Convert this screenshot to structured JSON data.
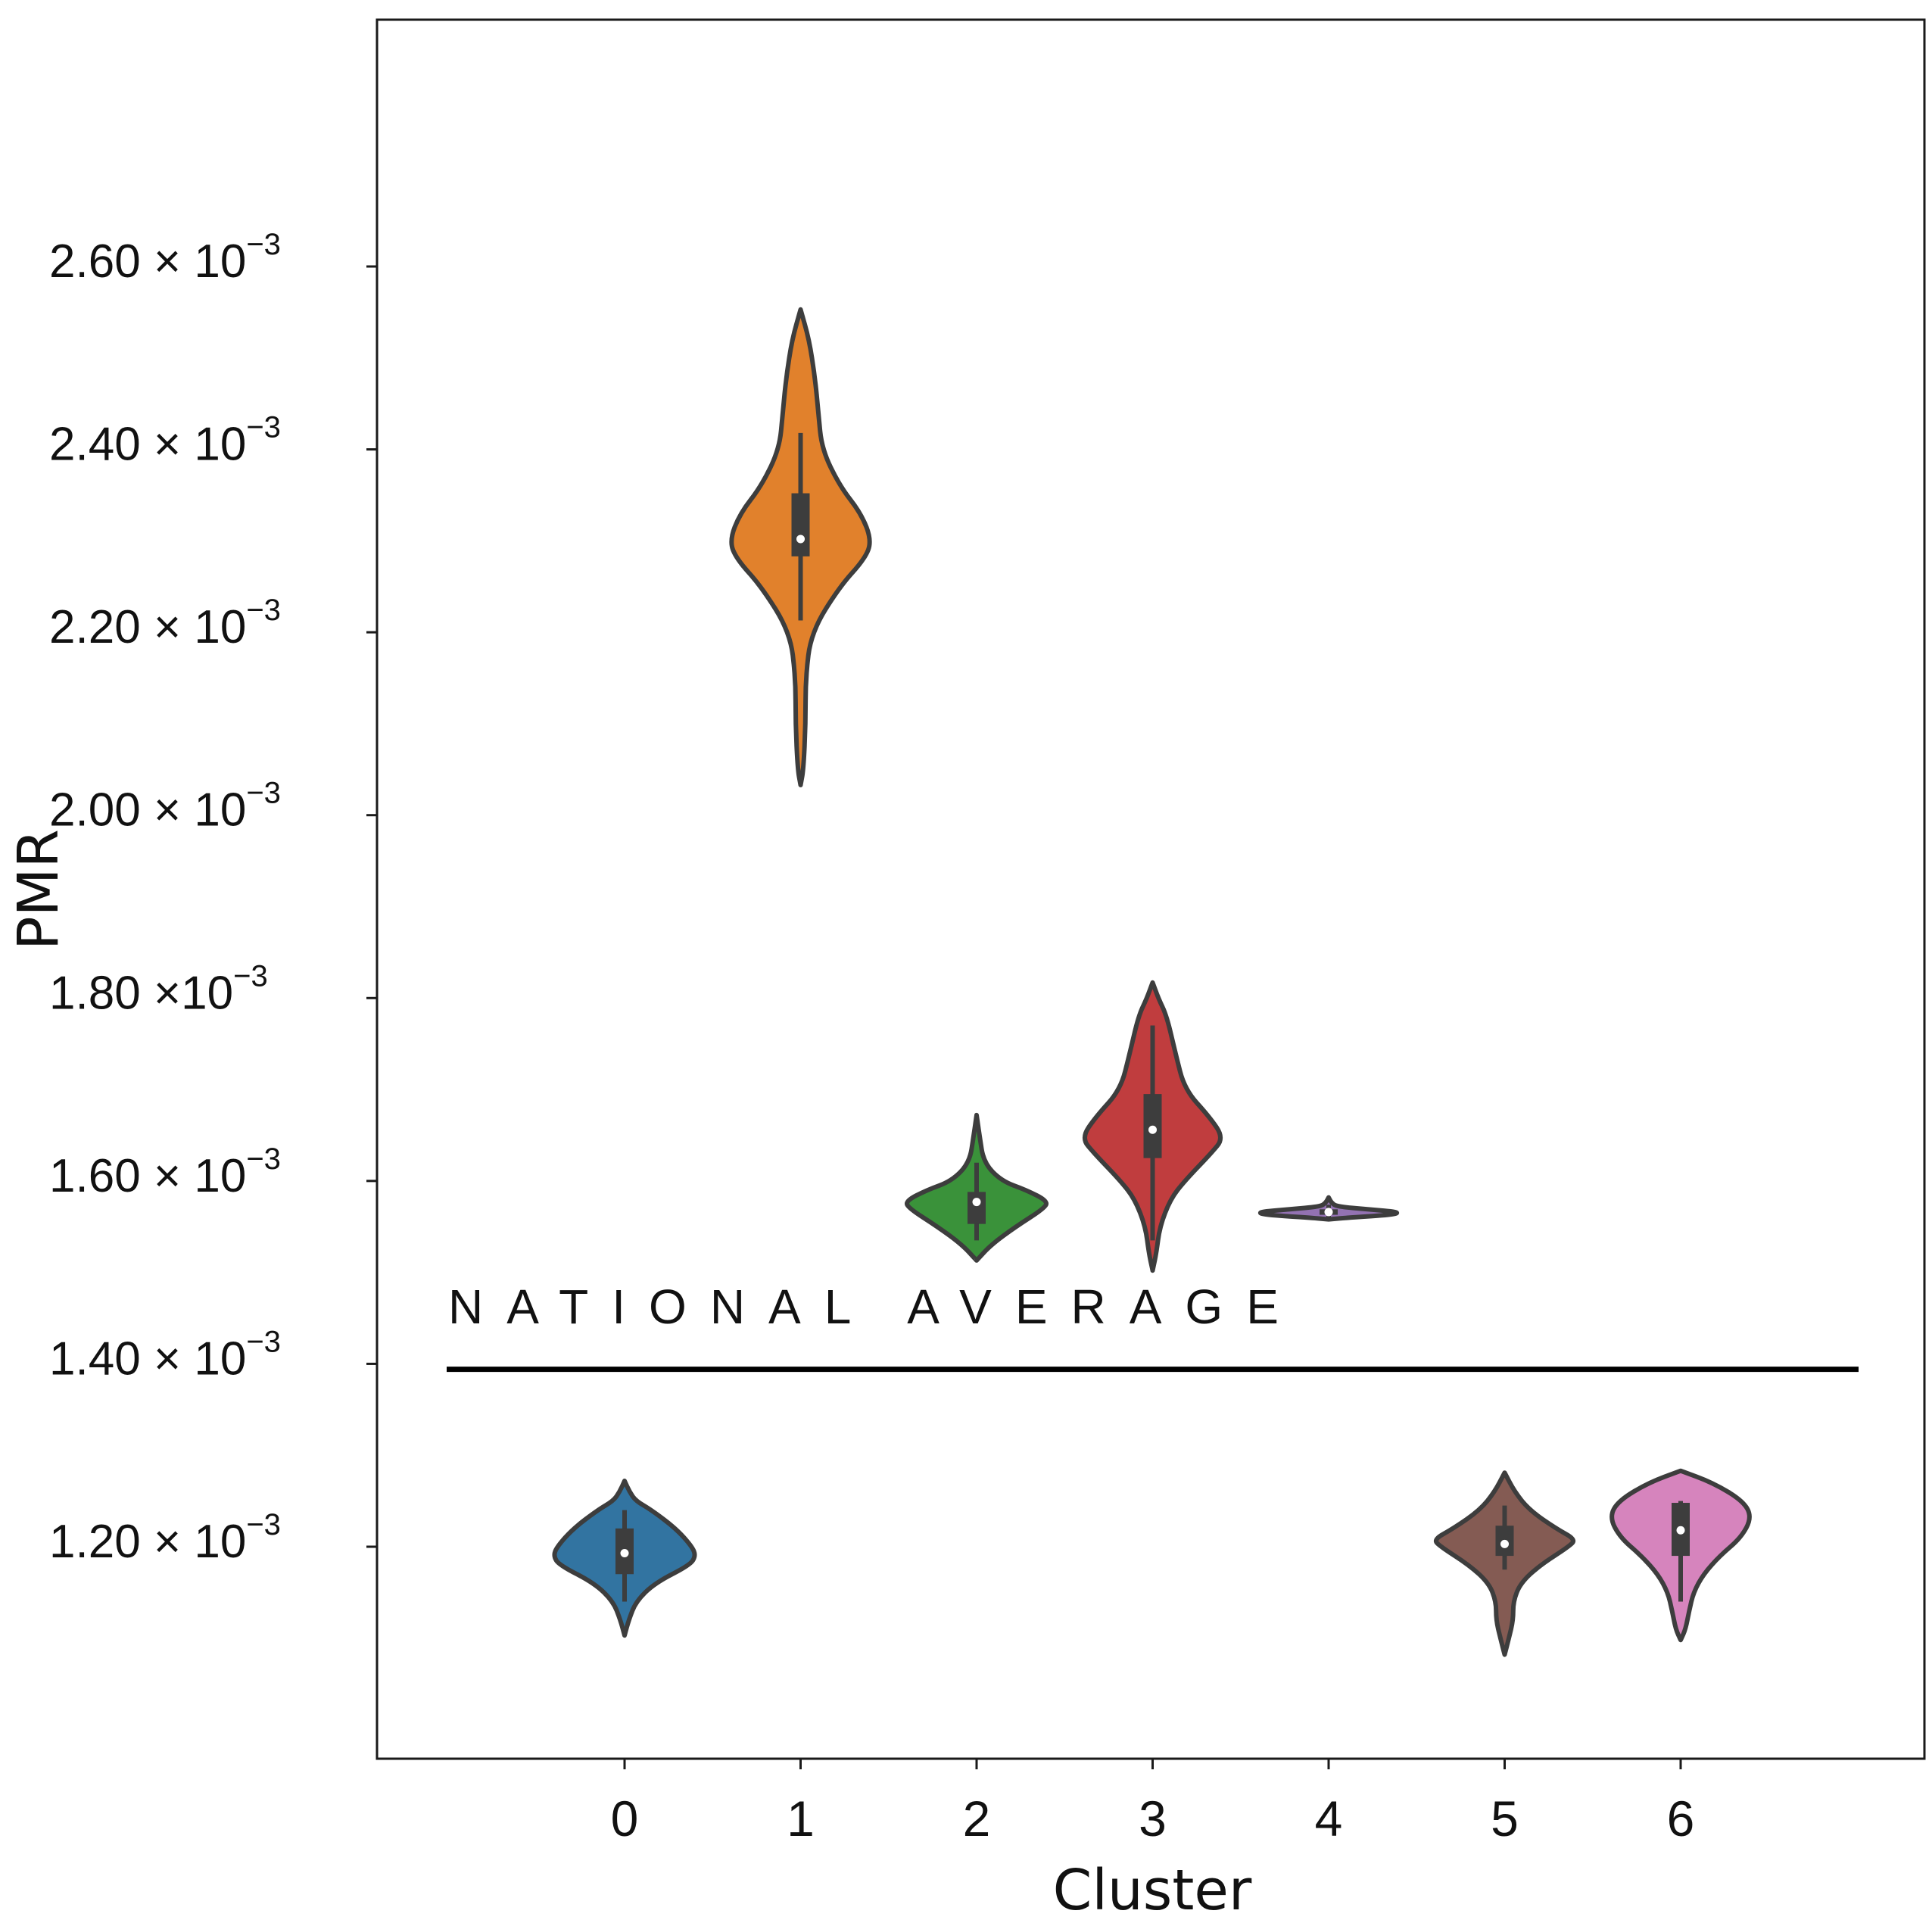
{
  "chart_data": {
    "type": "violin",
    "xlabel": "Cluster",
    "ylabel": "PMR",
    "ylim": [
      0.00102,
      0.00264
    ],
    "categories": [
      "0",
      "1",
      "2",
      "3",
      "4",
      "5",
      "6"
    ],
    "y_ticks": [
      {
        "value": 0.0012,
        "mantissa": "1.20",
        "base": "× 10",
        "exp": "−3"
      },
      {
        "value": 0.0014,
        "mantissa": "1.40",
        "base": "× 10",
        "exp": "−3"
      },
      {
        "value": 0.0016,
        "mantissa": "1.60",
        "base": "× 10",
        "exp": "−3"
      },
      {
        "value": 0.0018,
        "mantissa": "1.80",
        "base": "×10",
        "exp": "−3"
      },
      {
        "value": 0.002,
        "mantissa": "2.00",
        "base": "× 10",
        "exp": "−3"
      },
      {
        "value": 0.0022,
        "mantissa": "2.20",
        "base": "× 10",
        "exp": "−3"
      },
      {
        "value": 0.0024,
        "mantissa": "2.40",
        "base": "× 10",
        "exp": "−3"
      },
      {
        "value": 0.0026,
        "mantissa": "2.60",
        "base": "× 10",
        "exp": "−3"
      }
    ],
    "reference_line": {
      "label": "NATIONAL AVERAGE",
      "value": 0.001394
    },
    "series": [
      {
        "category": "0",
        "color": "#3274a1",
        "min": 0.001103,
        "max": 0.001272,
        "q1": 0.00117,
        "median": 0.001193,
        "q3": 0.00122,
        "whisker_low": 0.00114,
        "whisker_high": 0.00124,
        "density": [
          [
            0.001103,
            0.0
          ],
          [
            0.00112,
            0.06
          ],
          [
            0.00114,
            0.16
          ],
          [
            0.00116,
            0.42
          ],
          [
            0.00118,
            0.92
          ],
          [
            0.00119,
            1.0
          ],
          [
            0.0012,
            0.95
          ],
          [
            0.00122,
            0.72
          ],
          [
            0.00124,
            0.38
          ],
          [
            0.00125,
            0.16
          ],
          [
            0.00126,
            0.07
          ],
          [
            0.001272,
            0.0
          ]
        ]
      },
      {
        "category": "1",
        "color": "#e1812c",
        "min": 0.002033,
        "max": 0.002553,
        "q1": 0.002283,
        "median": 0.002302,
        "q3": 0.002352,
        "whisker_low": 0.002213,
        "whisker_high": 0.002418,
        "density": [
          [
            0.002033,
            0.0
          ],
          [
            0.00205,
            0.04
          ],
          [
            0.0021,
            0.07
          ],
          [
            0.00215,
            0.07
          ],
          [
            0.0022,
            0.15
          ],
          [
            0.00225,
            0.55
          ],
          [
            0.00228,
            0.9
          ],
          [
            0.0023,
            1.0
          ],
          [
            0.00233,
            0.85
          ],
          [
            0.00236,
            0.55
          ],
          [
            0.0024,
            0.3
          ],
          [
            0.00244,
            0.25
          ],
          [
            0.00248,
            0.2
          ],
          [
            0.00252,
            0.12
          ],
          [
            0.002553,
            0.0
          ]
        ]
      },
      {
        "category": "2",
        "color": "#3a923a",
        "min": 0.001513,
        "max": 0.001672,
        "q1": 0.001553,
        "median": 0.001577,
        "q3": 0.001588,
        "whisker_low": 0.001535,
        "whisker_high": 0.00162,
        "density": [
          [
            0.001513,
            0.0
          ],
          [
            0.00153,
            0.2
          ],
          [
            0.00155,
            0.55
          ],
          [
            0.00157,
            0.95
          ],
          [
            0.001578,
            1.0
          ],
          [
            0.00159,
            0.7
          ],
          [
            0.0016,
            0.35
          ],
          [
            0.00162,
            0.1
          ],
          [
            0.00165,
            0.04
          ],
          [
            0.001672,
            0.0
          ]
        ]
      },
      {
        "category": "3",
        "color": "#c03d3e",
        "min": 0.001502,
        "max": 0.001817,
        "q1": 0.001625,
        "median": 0.001656,
        "q3": 0.001695,
        "whisker_low": 0.001535,
        "whisker_high": 0.00177,
        "density": [
          [
            0.001502,
            0.0
          ],
          [
            0.00152,
            0.05
          ],
          [
            0.00155,
            0.1
          ],
          [
            0.00158,
            0.25
          ],
          [
            0.0016,
            0.45
          ],
          [
            0.00163,
            0.82
          ],
          [
            0.001647,
            1.0
          ],
          [
            0.00167,
            0.8
          ],
          [
            0.0017,
            0.45
          ],
          [
            0.00174,
            0.32
          ],
          [
            0.00178,
            0.2
          ],
          [
            0.0018,
            0.08
          ],
          [
            0.001817,
            0.0
          ]
        ]
      },
      {
        "category": "4",
        "color": "#9372b2",
        "min": 0.001558,
        "max": 0.001582,
        "q1": 0.001563,
        "median": 0.001566,
        "q3": 0.001569,
        "whisker_low": 0.00156,
        "whisker_high": 0.001574,
        "density": [
          [
            0.001558,
            0.0
          ],
          [
            0.00156,
            0.3
          ],
          [
            0.001563,
            0.9
          ],
          [
            0.001566,
            1.0
          ],
          [
            0.001569,
            0.55
          ],
          [
            0.001572,
            0.12
          ],
          [
            0.001576,
            0.04
          ],
          [
            0.001582,
            0.0
          ]
        ]
      },
      {
        "category": "5",
        "color": "#845b53",
        "min": 0.001082,
        "max": 0.001281,
        "q1": 0.00119,
        "median": 0.001203,
        "q3": 0.001223,
        "whisker_low": 0.001175,
        "whisker_high": 0.001245,
        "density": [
          [
            0.001082,
            0.0
          ],
          [
            0.0011,
            0.06
          ],
          [
            0.00112,
            0.12
          ],
          [
            0.00114,
            0.12
          ],
          [
            0.00116,
            0.22
          ],
          [
            0.00118,
            0.5
          ],
          [
            0.0012,
            0.9
          ],
          [
            0.001208,
            1.0
          ],
          [
            0.00122,
            0.72
          ],
          [
            0.00124,
            0.35
          ],
          [
            0.00126,
            0.14
          ],
          [
            0.001281,
            0.0
          ]
        ]
      },
      {
        "category": "6",
        "color": "#d684bd",
        "min": 0.001098,
        "max": 0.001283,
        "q1": 0.00119,
        "median": 0.001218,
        "q3": 0.001248,
        "whisker_low": 0.00114,
        "whisker_high": 0.00125,
        "density": [
          [
            0.001098,
            0.0
          ],
          [
            0.00111,
            0.07
          ],
          [
            0.00113,
            0.12
          ],
          [
            0.00115,
            0.18
          ],
          [
            0.00117,
            0.32
          ],
          [
            0.00119,
            0.55
          ],
          [
            0.00121,
            0.85
          ],
          [
            0.001232,
            1.0
          ],
          [
            0.00125,
            0.88
          ],
          [
            0.00127,
            0.45
          ],
          [
            0.001283,
            0.0
          ]
        ]
      }
    ]
  }
}
